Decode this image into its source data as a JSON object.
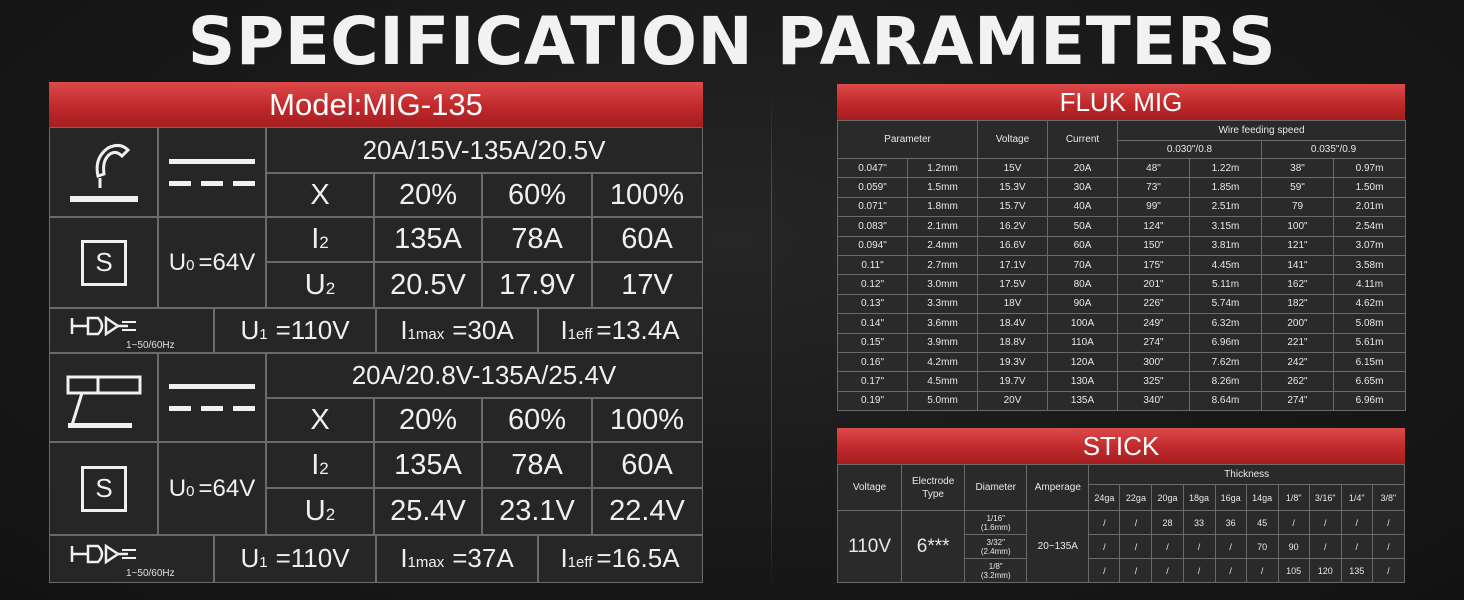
{
  "title": "SPECIFICATION PARAMETERS",
  "left": {
    "model": "Model:MIG-135",
    "mig": {
      "range": "20A/15V-135A/20.5V",
      "x_label": "X",
      "duty": [
        "20%",
        "60%",
        "100%"
      ],
      "i2_label": "I",
      "i2_sub": "2",
      "i2": [
        "135A",
        "78A",
        "60A"
      ],
      "u2_label": "U",
      "u2_sub": "2",
      "u2": [
        "20.5V",
        "17.9V",
        "17V"
      ],
      "u0_label": "U",
      "u0_sub": "0",
      "u0_value": "=64V",
      "s_symbol": "S",
      "hz": "1~50/60Hz",
      "u1_label": "U",
      "u1_sub": "1",
      "u1_value": "=110V",
      "i1max_label": "I",
      "i1max_sub": "1max",
      "i1max_value": "=30A",
      "i1eff_label": "I",
      "i1eff_sub": "1eff",
      "i1eff_value": "=13.4A"
    },
    "stick": {
      "range": "20A/20.8V-135A/25.4V",
      "x_label": "X",
      "duty": [
        "20%",
        "60%",
        "100%"
      ],
      "i2_label": "I",
      "i2_sub": "2",
      "i2": [
        "135A",
        "78A",
        "60A"
      ],
      "u2_label": "U",
      "u2_sub": "2",
      "u2": [
        "25.4V",
        "23.1V",
        "22.4V"
      ],
      "u0_label": "U",
      "u0_sub": "0",
      "u0_value": "=64V",
      "s_symbol": "S",
      "hz": "1~50/60Hz",
      "u1_label": "U",
      "u1_sub": "1",
      "u1_value": "=110V",
      "i1max_label": "I",
      "i1max_sub": "1max",
      "i1max_value": "=37A",
      "i1eff_label": "I",
      "i1eff_sub": "1eff",
      "i1eff_value": "=16.5A"
    }
  },
  "fluk": {
    "title": "FLUK MIG",
    "headers": {
      "parameter": "Parameter",
      "voltage": "Voltage",
      "current": "Current",
      "wire_speed": "Wire feeding speed",
      "wire_a": "0.030\"/0.8",
      "wire_b": "0.035\"/0.9"
    },
    "rows": [
      [
        "0.047\"",
        "1.2mm",
        "15V",
        "20A",
        "48\"",
        "1.22m",
        "38\"",
        "0.97m"
      ],
      [
        "0.059\"",
        "1.5mm",
        "15.3V",
        "30A",
        "73\"",
        "1.85m",
        "59\"",
        "1.50m"
      ],
      [
        "0.071\"",
        "1.8mm",
        "15.7V",
        "40A",
        "99\"",
        "2.51m",
        "79",
        "2.01m"
      ],
      [
        "0.083\"",
        "2.1mm",
        "16.2V",
        "50A",
        "124\"",
        "3.15m",
        "100\"",
        "2.54m"
      ],
      [
        "0.094\"",
        "2.4mm",
        "16.6V",
        "60A",
        "150\"",
        "3.81m",
        "121\"",
        "3.07m"
      ],
      [
        "0.11\"",
        "2.7mm",
        "17.1V",
        "70A",
        "175\"",
        "4.45m",
        "141\"",
        "3.58m"
      ],
      [
        "0.12\"",
        "3.0mm",
        "17.5V",
        "80A",
        "201\"",
        "5.11m",
        "162\"",
        "4.11m"
      ],
      [
        "0.13\"",
        "3.3mm",
        "18V",
        "90A",
        "226\"",
        "5.74m",
        "182\"",
        "4.62m"
      ],
      [
        "0.14\"",
        "3.6mm",
        "18.4V",
        "100A",
        "249\"",
        "6.32m",
        "200\"",
        "5.08m"
      ],
      [
        "0.15\"",
        "3.9mm",
        "18.8V",
        "110A",
        "274\"",
        "6.96m",
        "221\"",
        "5.61m"
      ],
      [
        "0.16\"",
        "4.2mm",
        "19.3V",
        "120A",
        "300\"",
        "7.62m",
        "242\"",
        "6.15m"
      ],
      [
        "0.17\"",
        "4.5mm",
        "19.7V",
        "130A",
        "325\"",
        "8.26m",
        "262\"",
        "6.65m"
      ],
      [
        "0.19\"",
        "5.0mm",
        "20V",
        "135A",
        "340\"",
        "8.64m",
        "274\"",
        "6.96m"
      ]
    ]
  },
  "stick_table": {
    "title": "STICK",
    "headers": {
      "voltage": "Voltage",
      "electrode_1": "Electrode",
      "electrode_2": "Type",
      "diameter": "Diameter",
      "amperage": "Amperage",
      "thickness": "Thickness"
    },
    "thickness_cols": [
      "24ga",
      "22ga",
      "20ga",
      "18ga",
      "16ga",
      "14ga",
      "1/8\"",
      "3/16\"",
      "1/4\"",
      "3/8\""
    ],
    "voltage": "110V",
    "electrode": "6***",
    "amperage": "20~135A",
    "rows": [
      {
        "dia_1": "1/16\"",
        "dia_2": "(1.6mm)",
        "values": [
          "/",
          "/",
          "28",
          "33",
          "36",
          "45",
          "/",
          "/",
          "/",
          "/"
        ]
      },
      {
        "dia_1": "3/32\"",
        "dia_2": "(2.4mm)",
        "values": [
          "/",
          "/",
          "/",
          "/",
          "/",
          "70",
          "90",
          "/",
          "/",
          "/"
        ]
      },
      {
        "dia_1": "1/8\"",
        "dia_2": "(3.2mm)",
        "values": [
          "/",
          "/",
          "/",
          "/",
          "/",
          "/",
          "105",
          "120",
          "135",
          "/"
        ]
      }
    ]
  }
}
